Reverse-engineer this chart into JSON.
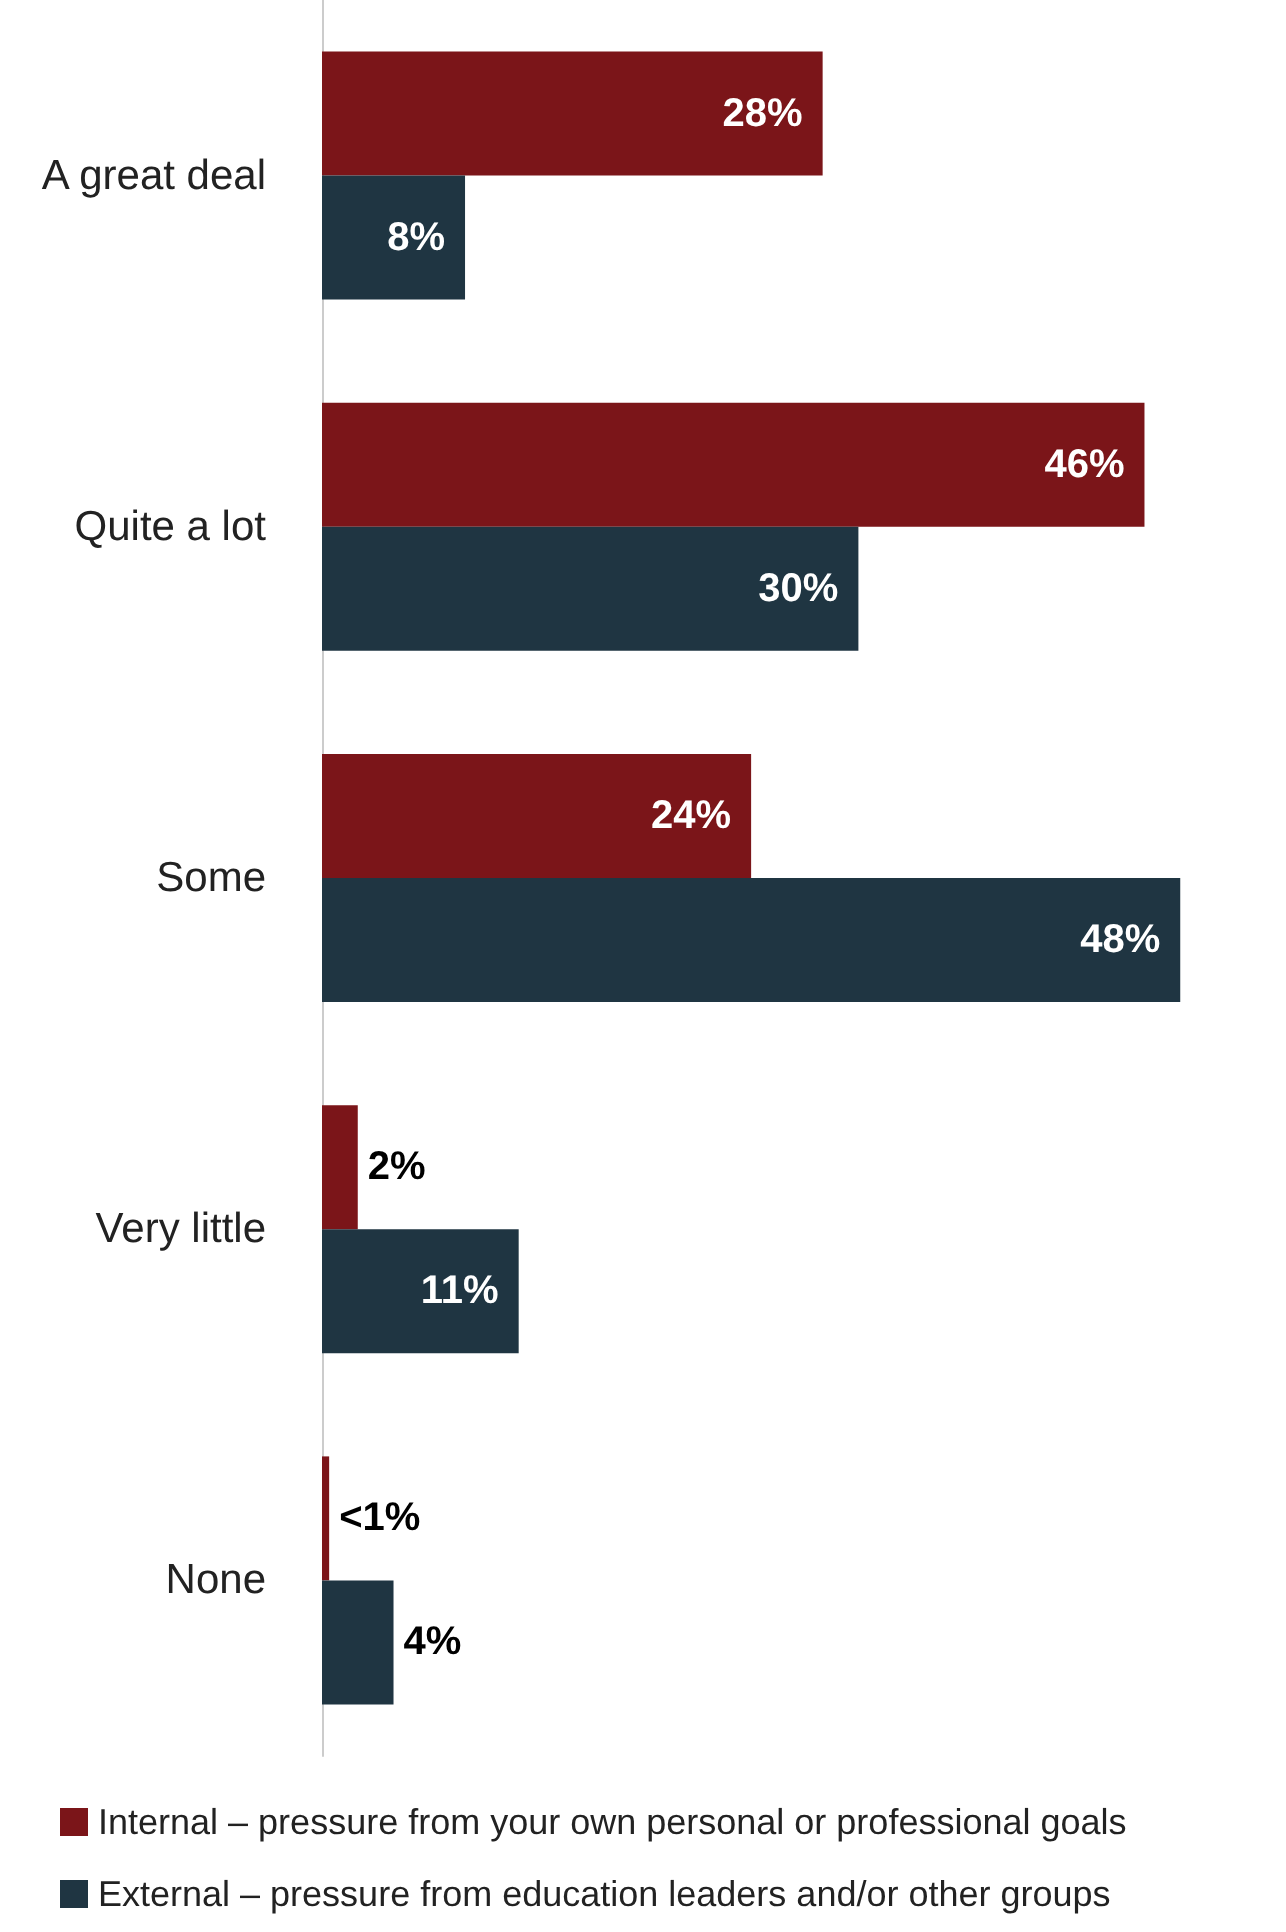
{
  "chart_data": {
    "type": "bar",
    "orientation": "horizontal",
    "categories": [
      "A great deal",
      "Quite a lot",
      "Some",
      "Very little",
      "None"
    ],
    "series": [
      {
        "name": "Internal – pressure from your own personal or professional goals",
        "color": "#7b1519",
        "values": [
          28,
          46,
          24,
          2,
          0.4
        ],
        "value_labels": [
          "28%",
          "46%",
          "24%",
          "2%",
          "<1%"
        ]
      },
      {
        "name": "External – pressure from education leaders and/or other groups",
        "color": "#1f3542",
        "values": [
          8,
          30,
          48,
          11,
          4
        ],
        "value_labels": [
          "8%",
          "30%",
          "48%",
          "11%",
          "4%"
        ]
      }
    ],
    "legend": "bottom left"
  }
}
